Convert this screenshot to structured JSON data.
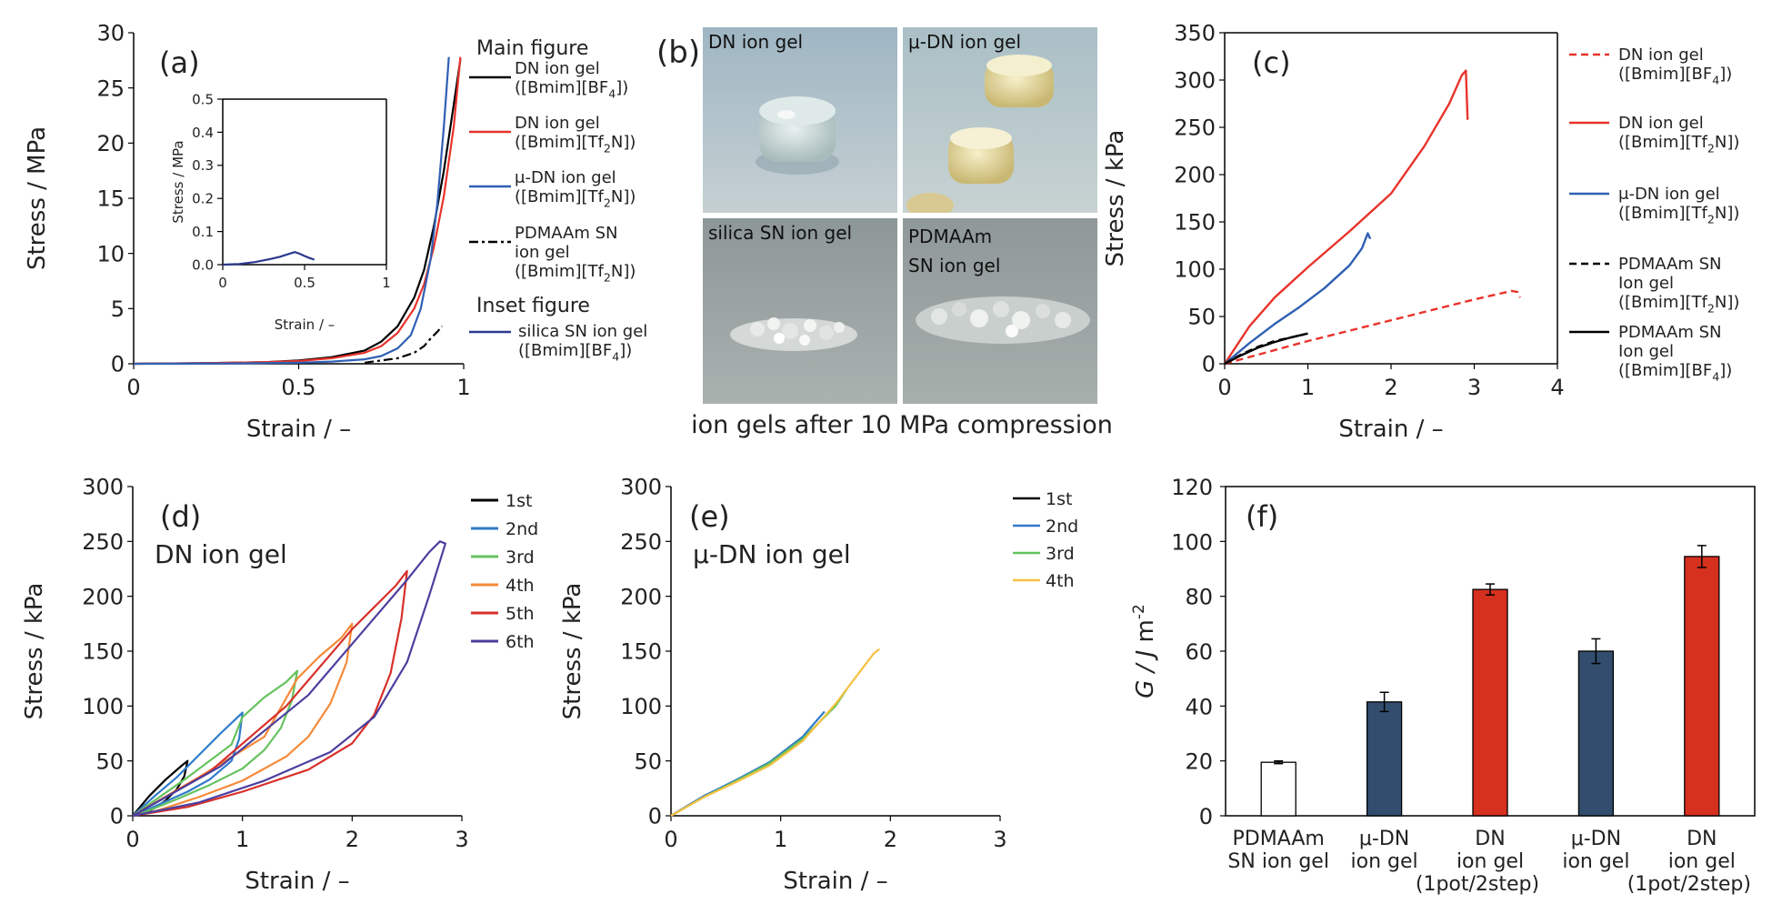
{
  "chart_data": [
    {
      "id": "a",
      "type": "line",
      "panel_label": "(a)",
      "xlabel": "Strain / –",
      "ylabel": "Stress / MPa",
      "xlim": [
        0,
        1
      ],
      "ylim": [
        0,
        30
      ],
      "xticks": [
        "0",
        "0.5",
        "1"
      ],
      "yticks": [
        "0",
        "5",
        "10",
        "15",
        "20",
        "25",
        "30"
      ],
      "legend_sections": {
        "main": "Main figure",
        "inset": "Inset figure"
      },
      "series": [
        {
          "name": "DN ion gel\n([Bmim][BF4])",
          "color": "#000000",
          "dash": "solid",
          "x": [
            0,
            0.2,
            0.4,
            0.5,
            0.6,
            0.7,
            0.75,
            0.8,
            0.85,
            0.88,
            0.91,
            0.94,
            0.97,
            0.99
          ],
          "y": [
            0,
            0.05,
            0.15,
            0.3,
            0.6,
            1.2,
            2.0,
            3.4,
            6.0,
            8.5,
            12.5,
            17.5,
            23.5,
            27.6
          ]
        },
        {
          "name": "DN ion gel\n([Bmim][Tf2N])",
          "color": "#e8332b",
          "dash": "solid",
          "x": [
            0,
            0.2,
            0.4,
            0.5,
            0.6,
            0.7,
            0.75,
            0.8,
            0.85,
            0.88,
            0.91,
            0.94,
            0.97,
            0.99
          ],
          "y": [
            0,
            0.05,
            0.15,
            0.25,
            0.5,
            1.0,
            1.6,
            2.8,
            5.0,
            7.2,
            10.6,
            15.2,
            21.5,
            27.8
          ]
        },
        {
          "name": "μ-DN ion gel\n([Bmim][Tf2N])",
          "color": "#2f5fb3",
          "dash": "solid",
          "x": [
            0,
            0.3,
            0.5,
            0.6,
            0.7,
            0.75,
            0.8,
            0.84,
            0.87,
            0.9,
            0.92,
            0.94,
            0.955
          ],
          "y": [
            0,
            0.03,
            0.1,
            0.2,
            0.4,
            0.7,
            1.4,
            2.6,
            5.0,
            9.5,
            14.5,
            21.5,
            27.8
          ]
        },
        {
          "name": "PDMAAm SN\nion gel\n([Bmim][Tf2N])",
          "color": "#000000",
          "dash": "dashdot",
          "x": [
            0.7,
            0.8,
            0.85,
            0.88,
            0.9,
            0.92,
            0.935
          ],
          "y": [
            0.1,
            0.5,
            1.0,
            1.6,
            2.3,
            2.9,
            3.4
          ]
        },
        {
          "name": "silica SN ion gel\n([Bmim][BF4])",
          "color": "#2b3990",
          "dash": "solid",
          "legend_only": true,
          "x": [],
          "y": []
        }
      ],
      "inset": {
        "xlabel": "Strain / –",
        "ylabel": "Stress / MPa",
        "xlim": [
          0,
          1
        ],
        "ylim": [
          0,
          0.5
        ],
        "xticks": [
          "0",
          "0.5",
          "1"
        ],
        "yticks": [
          "0.0",
          "0.1",
          "0.2",
          "0.3",
          "0.4",
          "0.5"
        ],
        "series": [
          {
            "name": "silica SN ion gel",
            "color": "#2b3990",
            "x": [
              0,
              0.1,
              0.2,
              0.3,
              0.35,
              0.4,
              0.44,
              0.47,
              0.5,
              0.53,
              0.56
            ],
            "y": [
              0,
              0.002,
              0.008,
              0.018,
              0.024,
              0.032,
              0.038,
              0.033,
              0.026,
              0.02,
              0.015
            ]
          }
        ]
      }
    },
    {
      "id": "c",
      "type": "line",
      "panel_label": "(c)",
      "xlabel": "Strain / –",
      "ylabel": "Stress / kPa",
      "xlim": [
        0,
        4
      ],
      "ylim": [
        0,
        350
      ],
      "xticks": [
        "0",
        "1",
        "2",
        "3",
        "4"
      ],
      "yticks": [
        "0",
        "50",
        "100",
        "150",
        "200",
        "250",
        "300",
        "350"
      ],
      "series": [
        {
          "name": "DN ion gel\n([Bmim][BF4])",
          "color": "#e8332b",
          "dash": "dashed",
          "x": [
            0,
            0.5,
            1.0,
            1.5,
            2.0,
            2.5,
            3.0,
            3.3,
            3.45,
            3.52,
            3.55
          ],
          "y": [
            0,
            12,
            24,
            35,
            46,
            57,
            68,
            74,
            77,
            76,
            70
          ]
        },
        {
          "name": "DN ion gel\n([Bmim][Tf2N])",
          "color": "#e8332b",
          "dash": "solid",
          "x": [
            0,
            0.3,
            0.6,
            1.0,
            1.5,
            2.0,
            2.4,
            2.7,
            2.85,
            2.9,
            2.92
          ],
          "y": [
            0,
            40,
            70,
            102,
            140,
            180,
            230,
            275,
            305,
            310,
            258
          ]
        },
        {
          "name": "μ-DN ion gel\n([Bmim][Tf2N])",
          "color": "#2f5fb3",
          "dash": "solid",
          "x": [
            0,
            0.3,
            0.6,
            0.9,
            1.2,
            1.5,
            1.65,
            1.72,
            1.75
          ],
          "y": [
            0,
            22,
            42,
            60,
            80,
            104,
            122,
            138,
            132
          ]
        },
        {
          "name": "PDMAAm SN\nIon gel\n([Bmim][Tf2N])",
          "color": "#000000",
          "dash": "dashed",
          "x": [
            0,
            0.2,
            0.4,
            0.6,
            0.8,
            0.95
          ],
          "y": [
            0,
            10,
            18,
            24,
            28,
            31
          ]
        },
        {
          "name": "PDMAAm SN\nIon gel\n([Bmim][BF4])",
          "color": "#000000",
          "dash": "solid",
          "x": [
            0,
            0.2,
            0.4,
            0.6,
            0.8,
            1.0
          ],
          "y": [
            0,
            9,
            17,
            23,
            28,
            32
          ]
        }
      ]
    },
    {
      "id": "d",
      "type": "line",
      "panel_label": "(d)",
      "subtitle": "DN ion gel",
      "xlabel": "Strain / –",
      "ylabel": "Stress / kPa",
      "xlim": [
        0,
        3
      ],
      "ylim": [
        0,
        300
      ],
      "xticks": [
        "0",
        "1",
        "2",
        "3"
      ],
      "yticks": [
        "0",
        "50",
        "100",
        "150",
        "200",
        "250",
        "300"
      ],
      "series": [
        {
          "name": "1st",
          "color": "#000000",
          "x": [
            0,
            0.15,
            0.3,
            0.45,
            0.5,
            0.47,
            0.4,
            0.3,
            0.2,
            0.1,
            0
          ],
          "y": [
            0,
            18,
            33,
            46,
            50,
            36,
            24,
            14,
            7,
            2,
            0
          ]
        },
        {
          "name": "2nd",
          "color": "#2f7ac9",
          "x": [
            0,
            0.2,
            0.4,
            0.6,
            0.8,
            1.0,
            0.97,
            0.9,
            0.7,
            0.5,
            0.3,
            0.1,
            0
          ],
          "y": [
            0,
            18,
            35,
            55,
            75,
            94,
            70,
            50,
            33,
            22,
            13,
            4,
            0
          ]
        },
        {
          "name": "3rd",
          "color": "#66c25e",
          "x": [
            0,
            0.5,
            0.9,
            1.0,
            1.2,
            1.4,
            1.5,
            1.45,
            1.35,
            1.2,
            1.0,
            0.7,
            0.4,
            0.1,
            0
          ],
          "y": [
            0,
            35,
            65,
            90,
            108,
            122,
            132,
            105,
            80,
            60,
            43,
            28,
            15,
            3,
            0
          ]
        },
        {
          "name": "4th",
          "color": "#f58a3a",
          "x": [
            0,
            0.6,
            1.2,
            1.5,
            1.7,
            1.9,
            2.0,
            1.95,
            1.8,
            1.6,
            1.4,
            1.0,
            0.6,
            0.2,
            0
          ],
          "y": [
            0,
            35,
            72,
            125,
            145,
            162,
            175,
            140,
            102,
            72,
            54,
            32,
            17,
            4,
            0
          ]
        },
        {
          "name": "5th",
          "color": "#d7302a",
          "x": [
            0,
            0.7,
            1.4,
            2.0,
            2.2,
            2.4,
            2.5,
            2.45,
            2.35,
            2.2,
            2.0,
            1.6,
            1.0,
            0.5,
            0
          ],
          "y": [
            0,
            40,
            100,
            170,
            190,
            210,
            223,
            180,
            130,
            92,
            66,
            42,
            22,
            8,
            0
          ]
        },
        {
          "name": "6th",
          "color": "#4b3f9e",
          "x": [
            0,
            0.8,
            1.6,
            2.2,
            2.5,
            2.7,
            2.8,
            2.85,
            2.7,
            2.5,
            2.2,
            1.8,
            1.2,
            0.6,
            0
          ],
          "y": [
            0,
            45,
            110,
            180,
            215,
            240,
            250,
            248,
            200,
            140,
            90,
            58,
            32,
            12,
            0
          ]
        }
      ]
    },
    {
      "id": "e",
      "type": "line",
      "panel_label": "(e)",
      "subtitle": "μ-DN ion gel",
      "xlabel": "Strain / –",
      "ylabel": "Stress / kPa",
      "xlim": [
        0,
        3
      ],
      "ylim": [
        0,
        300
      ],
      "xticks": [
        "0",
        "1",
        "2",
        "3"
      ],
      "yticks": [
        "0",
        "50",
        "100",
        "150",
        "200",
        "250",
        "300"
      ],
      "series": [
        {
          "name": "1st",
          "color": "#000000",
          "x": [
            0,
            0.3,
            0.6,
            0.9,
            1.1
          ],
          "y": [
            0,
            18,
            32,
            47,
            62
          ]
        },
        {
          "name": "2nd",
          "color": "#2f7ac9",
          "x": [
            0,
            0.3,
            0.6,
            0.9,
            1.2,
            1.4
          ],
          "y": [
            0,
            18,
            33,
            49,
            72,
            95
          ]
        },
        {
          "name": "3rd",
          "color": "#66c25e",
          "x": [
            0,
            0.3,
            0.6,
            0.9,
            1.2,
            1.5,
            1.6
          ],
          "y": [
            0,
            17,
            32,
            48,
            70,
            100,
            115
          ]
        },
        {
          "name": "4th",
          "color": "#f5c242",
          "x": [
            0,
            0.3,
            0.6,
            0.9,
            1.2,
            1.5,
            1.75,
            1.85,
            1.9
          ],
          "y": [
            0,
            17,
            31,
            46,
            68,
            102,
            135,
            148,
            152
          ]
        }
      ]
    },
    {
      "id": "f",
      "type": "bar",
      "panel_label": "(f)",
      "ylabel": "G / J m-2",
      "ylim": [
        0,
        120
      ],
      "yticks": [
        "0",
        "20",
        "40",
        "60",
        "80",
        "100",
        "120"
      ],
      "categories": [
        "PDMAAm\nSN ion gel",
        "μ-DN\nion gel",
        "DN\nion gel",
        "μ-DN\nion gel",
        "DN\nion gel"
      ],
      "group_labels": [
        "(1pot/2step)",
        "(1pot/2step)"
      ],
      "values": [
        19.5,
        41.5,
        82.5,
        60,
        94.5
      ],
      "errors": [
        0.5,
        3.5,
        2,
        4.5,
        4
      ],
      "colors": [
        "#ffffff",
        "#334d6e",
        "#d6301f",
        "#334d6e",
        "#d6301f"
      ]
    }
  ],
  "panel_b": {
    "label": "(b)",
    "caption": "ion gels after 10 MPa compression",
    "photos": [
      {
        "label": "DN ion gel"
      },
      {
        "label": "μ-DN ion gel"
      },
      {
        "label": "silica SN ion gel"
      },
      {
        "label": "PDMAAm\nSN ion gel"
      }
    ]
  }
}
